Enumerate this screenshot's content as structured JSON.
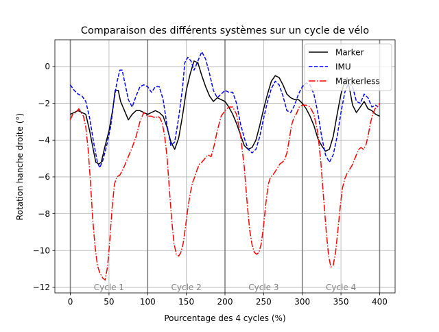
{
  "chart_data": {
    "type": "line",
    "title": "Comparaison des différents systèmes sur un cycle de vélo",
    "xlabel": "Pourcentage des 4 cycles (%)",
    "ylabel": "Rotation hanche droite (°)",
    "xlim": [
      -20,
      420
    ],
    "ylim": [
      -12.3,
      1.45
    ],
    "x_ticks": [
      0,
      50,
      100,
      150,
      200,
      250,
      300,
      350,
      400
    ],
    "y_ticks": [
      -12,
      -10,
      -8,
      -6,
      -4,
      -2,
      0
    ],
    "grid": true,
    "legend_position": "top-right",
    "cycle_lines": [
      0,
      100,
      200,
      300,
      400
    ],
    "cycle_labels": [
      {
        "text": "Cycle 1",
        "x": 50,
        "y": -12
      },
      {
        "text": "Cycle 2",
        "x": 150,
        "y": -12
      },
      {
        "text": "Cycle 3",
        "x": 250,
        "y": -12
      },
      {
        "text": "Cycle 4",
        "x": 350,
        "y": -12
      }
    ],
    "series": [
      {
        "name": "Marker",
        "color": "#000000",
        "style": "solid",
        "points": [
          [
            0,
            -2.6
          ],
          [
            5,
            -2.5
          ],
          [
            10,
            -2.4
          ],
          [
            15,
            -2.5
          ],
          [
            20,
            -2.6
          ],
          [
            25,
            -3.5
          ],
          [
            30,
            -4.6
          ],
          [
            33,
            -5.2
          ],
          [
            37,
            -5.3
          ],
          [
            40,
            -5.2
          ],
          [
            45,
            -4.3
          ],
          [
            50,
            -3.5
          ],
          [
            55,
            -2.3
          ],
          [
            58,
            -1.3
          ],
          [
            62,
            -1.3
          ],
          [
            65,
            -1.9
          ],
          [
            70,
            -2.4
          ],
          [
            75,
            -2.9
          ],
          [
            80,
            -2.6
          ],
          [
            85,
            -2.4
          ],
          [
            90,
            -2.4
          ],
          [
            95,
            -2.5
          ],
          [
            100,
            -2.6
          ],
          [
            105,
            -2.5
          ],
          [
            110,
            -2.4
          ],
          [
            115,
            -2.5
          ],
          [
            120,
            -2.7
          ],
          [
            125,
            -3.3
          ],
          [
            130,
            -4.1
          ],
          [
            135,
            -4.5
          ],
          [
            140,
            -3.9
          ],
          [
            145,
            -2.7
          ],
          [
            150,
            -1.3
          ],
          [
            155,
            -0.4
          ],
          [
            160,
            0.3
          ],
          [
            165,
            0.2
          ],
          [
            170,
            -0.5
          ],
          [
            175,
            -1.1
          ],
          [
            180,
            -1.6
          ],
          [
            185,
            -1.9
          ],
          [
            190,
            -1.7
          ],
          [
            195,
            -1.8
          ],
          [
            200,
            -1.9
          ],
          [
            205,
            -2.2
          ],
          [
            210,
            -2.6
          ],
          [
            215,
            -3.1
          ],
          [
            220,
            -3.7
          ],
          [
            225,
            -4.3
          ],
          [
            230,
            -4.5
          ],
          [
            235,
            -4.4
          ],
          [
            240,
            -4.0
          ],
          [
            245,
            -3.2
          ],
          [
            250,
            -2.3
          ],
          [
            255,
            -1.5
          ],
          [
            260,
            -0.8
          ],
          [
            265,
            -0.5
          ],
          [
            270,
            -0.6
          ],
          [
            275,
            -1.0
          ],
          [
            280,
            -1.5
          ],
          [
            285,
            -1.7
          ],
          [
            290,
            -1.8
          ],
          [
            295,
            -1.8
          ],
          [
            300,
            -2.0
          ],
          [
            305,
            -2.3
          ],
          [
            310,
            -2.7
          ],
          [
            315,
            -3.2
          ],
          [
            320,
            -3.9
          ],
          [
            325,
            -4.3
          ],
          [
            330,
            -4.6
          ],
          [
            335,
            -4.5
          ],
          [
            340,
            -3.8
          ],
          [
            345,
            -2.6
          ],
          [
            350,
            -1.5
          ],
          [
            355,
            -0.8
          ],
          [
            358,
            -0.6
          ],
          [
            362,
            -1.4
          ],
          [
            365,
            -2.1
          ],
          [
            370,
            -2.5
          ],
          [
            375,
            -2.2
          ],
          [
            380,
            -1.9
          ],
          [
            385,
            -2.3
          ],
          [
            390,
            -2.4
          ],
          [
            395,
            -2.6
          ],
          [
            400,
            -2.7
          ]
        ]
      },
      {
        "name": "IMU",
        "color": "#0000ff",
        "style": "dashed",
        "points": [
          [
            0,
            -1.0
          ],
          [
            5,
            -1.3
          ],
          [
            10,
            -1.5
          ],
          [
            15,
            -1.6
          ],
          [
            20,
            -1.9
          ],
          [
            25,
            -2.8
          ],
          [
            30,
            -4.1
          ],
          [
            35,
            -5.2
          ],
          [
            38,
            -5.5
          ],
          [
            42,
            -5.1
          ],
          [
            47,
            -4.3
          ],
          [
            52,
            -3.3
          ],
          [
            56,
            -2.0
          ],
          [
            60,
            -0.9
          ],
          [
            64,
            -0.2
          ],
          [
            67,
            -0.2
          ],
          [
            70,
            -0.8
          ],
          [
            75,
            -1.8
          ],
          [
            80,
            -2.2
          ],
          [
            85,
            -1.6
          ],
          [
            90,
            -1.1
          ],
          [
            95,
            -1.0
          ],
          [
            100,
            -1.1
          ],
          [
            105,
            -1.4
          ],
          [
            110,
            -1.1
          ],
          [
            115,
            -1.1
          ],
          [
            120,
            -1.8
          ],
          [
            125,
            -3.2
          ],
          [
            130,
            -4.3
          ],
          [
            135,
            -4.1
          ],
          [
            140,
            -2.8
          ],
          [
            145,
            -1.2
          ],
          [
            148,
            0.2
          ],
          [
            152,
            0.5
          ],
          [
            156,
            0.3
          ],
          [
            160,
            -0.2
          ],
          [
            165,
            0.3
          ],
          [
            170,
            0.8
          ],
          [
            175,
            0.4
          ],
          [
            180,
            -0.4
          ],
          [
            185,
            -1.3
          ],
          [
            190,
            -1.7
          ],
          [
            195,
            -1.5
          ],
          [
            200,
            -1.3
          ],
          [
            205,
            -1.4
          ],
          [
            210,
            -1.4
          ],
          [
            215,
            -2.0
          ],
          [
            220,
            -3.1
          ],
          [
            225,
            -3.9
          ],
          [
            230,
            -4.5
          ],
          [
            235,
            -4.7
          ],
          [
            240,
            -4.5
          ],
          [
            245,
            -3.8
          ],
          [
            250,
            -2.8
          ],
          [
            255,
            -1.9
          ],
          [
            260,
            -1.2
          ],
          [
            265,
            -0.8
          ],
          [
            270,
            -1.0
          ],
          [
            275,
            -1.6
          ],
          [
            280,
            -2.4
          ],
          [
            285,
            -2.5
          ],
          [
            290,
            -2.1
          ],
          [
            295,
            -1.5
          ],
          [
            300,
            -1.1
          ],
          [
            305,
            -0.9
          ],
          [
            310,
            -1.0
          ],
          [
            315,
            -1.5
          ],
          [
            320,
            -2.5
          ],
          [
            325,
            -3.8
          ],
          [
            330,
            -4.8
          ],
          [
            335,
            -5.2
          ],
          [
            340,
            -4.8
          ],
          [
            345,
            -3.8
          ],
          [
            350,
            -2.5
          ],
          [
            355,
            -1.4
          ],
          [
            360,
            -0.9
          ],
          [
            365,
            -1.1
          ],
          [
            370,
            -1.9
          ],
          [
            375,
            -2.0
          ],
          [
            380,
            -1.5
          ],
          [
            385,
            -1.7
          ],
          [
            390,
            -2.2
          ],
          [
            395,
            -2.1
          ],
          [
            398,
            -2.2
          ]
        ]
      },
      {
        "name": "Markerless",
        "color": "#ff0000",
        "style": "dashdot",
        "points": [
          [
            0,
            -2.9
          ],
          [
            3,
            -2.6
          ],
          [
            7,
            -2.5
          ],
          [
            11,
            -2.3
          ],
          [
            14,
            -2.5
          ],
          [
            17,
            -2.7
          ],
          [
            20,
            -3.3
          ],
          [
            23,
            -4.5
          ],
          [
            26,
            -6.3
          ],
          [
            29,
            -8.3
          ],
          [
            32,
            -9.8
          ],
          [
            35,
            -10.8
          ],
          [
            38,
            -11.2
          ],
          [
            42,
            -11.5
          ],
          [
            45,
            -11.6
          ],
          [
            48,
            -10.9
          ],
          [
            51,
            -9.5
          ],
          [
            54,
            -7.7
          ],
          [
            57,
            -6.4
          ],
          [
            60,
            -6.0
          ],
          [
            64,
            -5.9
          ],
          [
            68,
            -5.6
          ],
          [
            72,
            -5.2
          ],
          [
            76,
            -4.8
          ],
          [
            80,
            -4.4
          ],
          [
            85,
            -3.8
          ],
          [
            90,
            -3.0
          ],
          [
            95,
            -2.5
          ],
          [
            100,
            -2.7
          ],
          [
            105,
            -2.7
          ],
          [
            110,
            -2.8
          ],
          [
            113,
            -2.7
          ],
          [
            116,
            -2.8
          ],
          [
            119,
            -3.1
          ],
          [
            122,
            -3.8
          ],
          [
            125,
            -4.9
          ],
          [
            128,
            -6.6
          ],
          [
            131,
            -8.3
          ],
          [
            134,
            -9.6
          ],
          [
            137,
            -10.2
          ],
          [
            140,
            -10.3
          ],
          [
            143,
            -10.1
          ],
          [
            146,
            -9.6
          ],
          [
            149,
            -8.7
          ],
          [
            152,
            -7.7
          ],
          [
            155,
            -6.9
          ],
          [
            158,
            -6.3
          ],
          [
            161,
            -6.0
          ],
          [
            164,
            -5.6
          ],
          [
            167,
            -5.3
          ],
          [
            170,
            -5.2
          ],
          [
            174,
            -5.0
          ],
          [
            178,
            -4.8
          ],
          [
            182,
            -4.9
          ],
          [
            186,
            -4.3
          ],
          [
            190,
            -3.5
          ],
          [
            195,
            -2.7
          ],
          [
            200,
            -2.4
          ],
          [
            205,
            -2.2
          ],
          [
            210,
            -2.2
          ],
          [
            215,
            -2.6
          ],
          [
            220,
            -3.7
          ],
          [
            225,
            -5.5
          ],
          [
            229,
            -7.6
          ],
          [
            232,
            -8.9
          ],
          [
            235,
            -9.7
          ],
          [
            238,
            -10.1
          ],
          [
            241,
            -10.2
          ],
          [
            244,
            -10.1
          ],
          [
            247,
            -9.6
          ],
          [
            250,
            -8.6
          ],
          [
            253,
            -7.4
          ],
          [
            256,
            -6.4
          ],
          [
            259,
            -6.0
          ],
          [
            262,
            -5.9
          ],
          [
            265,
            -5.7
          ],
          [
            268,
            -5.5
          ],
          [
            271,
            -5.3
          ],
          [
            274,
            -5.2
          ],
          [
            277,
            -5.1
          ],
          [
            280,
            -4.7
          ],
          [
            283,
            -4.0
          ],
          [
            286,
            -3.2
          ],
          [
            289,
            -2.8
          ],
          [
            292,
            -2.6
          ],
          [
            296,
            -2.2
          ],
          [
            300,
            -2.1
          ],
          [
            305,
            -2.1
          ],
          [
            310,
            -2.2
          ],
          [
            315,
            -2.6
          ],
          [
            320,
            -3.6
          ],
          [
            324,
            -5.2
          ],
          [
            328,
            -7.4
          ],
          [
            331,
            -9.0
          ],
          [
            334,
            -10.3
          ],
          [
            337,
            -10.9
          ],
          [
            340,
            -10.8
          ],
          [
            343,
            -10.1
          ],
          [
            346,
            -8.9
          ],
          [
            349,
            -7.6
          ],
          [
            352,
            -6.6
          ],
          [
            355,
            -6.1
          ],
          [
            358,
            -5.8
          ],
          [
            361,
            -5.6
          ],
          [
            364,
            -5.4
          ],
          [
            367,
            -5.1
          ],
          [
            370,
            -4.8
          ],
          [
            373,
            -4.5
          ],
          [
            376,
            -4.4
          ],
          [
            379,
            -4.5
          ],
          [
            382,
            -4.3
          ],
          [
            385,
            -3.8
          ],
          [
            388,
            -3.1
          ],
          [
            391,
            -2.6
          ],
          [
            394,
            -2.3
          ],
          [
            397,
            -2.2
          ],
          [
            400,
            -2.0
          ]
        ]
      }
    ]
  }
}
